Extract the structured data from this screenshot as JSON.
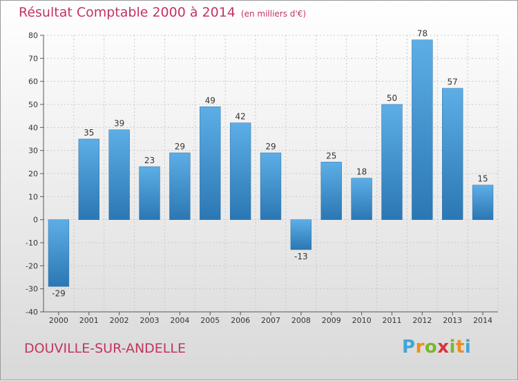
{
  "header": {
    "title": "Résultat Comptable 2000 à 2014",
    "unit": "(en milliers d'€)"
  },
  "footer": {
    "commune": "DOUVILLE-SUR-ANDELLE",
    "logo_text": "Proxiti"
  },
  "colors": {
    "bar_top": "#5daee6",
    "bar_bottom": "#2b77b3",
    "title": "#c2345e",
    "grid": "#c8c8c8"
  },
  "chart_data": {
    "type": "bar",
    "title": "Résultat Comptable 2000 à 2014",
    "subtitle": "(en milliers d'€)",
    "xlabel": "",
    "ylabel": "",
    "categories": [
      "2000",
      "2001",
      "2002",
      "2003",
      "2004",
      "2005",
      "2006",
      "2007",
      "2008",
      "2009",
      "2010",
      "2011",
      "2012",
      "2013",
      "2014"
    ],
    "values": [
      -29,
      35,
      39,
      23,
      29,
      49,
      42,
      29,
      -13,
      25,
      18,
      50,
      78,
      57,
      15
    ],
    "data_labels": [
      "-29",
      "35",
      "39",
      "23",
      "29",
      "49",
      "42",
      "29",
      "-13",
      "25",
      "18",
      "50",
      "78",
      "57",
      "15"
    ],
    "ylim": [
      -40,
      80
    ],
    "yticks": [
      -40,
      -30,
      -20,
      -10,
      0,
      10,
      20,
      30,
      40,
      50,
      60,
      70,
      80
    ],
    "ytick_labels": [
      "-40",
      "-30",
      "-20",
      "-10",
      "0",
      "10",
      "20",
      "30",
      "40",
      "50",
      "60",
      "70",
      "80"
    ],
    "grid": true,
    "legend": "none"
  }
}
